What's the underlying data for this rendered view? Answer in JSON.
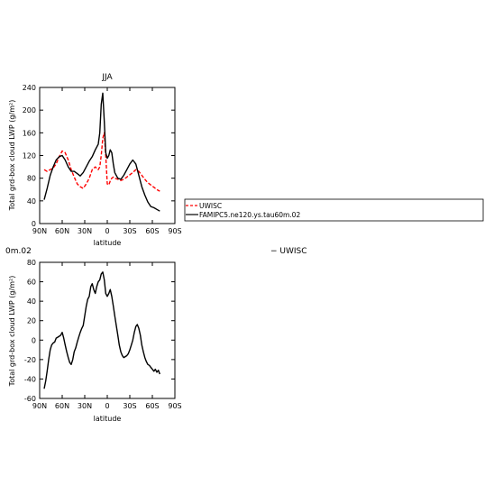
{
  "chart_data": [
    {
      "type": "line",
      "title": "JJA",
      "xlabel": "latitude",
      "ylabel": "Total grd-box cloud LWP (g/m²)",
      "x_ticks": [
        90,
        60,
        30,
        0,
        -30,
        -60,
        -90
      ],
      "x_tick_labels": [
        "90N",
        "60N",
        "30N",
        "0",
        "30S",
        "60S",
        "90S"
      ],
      "xlim": [
        90,
        -90
      ],
      "ylim": [
        0,
        240
      ],
      "y_ticks": [
        0,
        40,
        80,
        120,
        160,
        200,
        240
      ],
      "y_tick_labels": [
        "0",
        "40",
        "80",
        "120",
        "160",
        "200",
        "240"
      ],
      "series": [
        {
          "name": "UWISC",
          "color": "#ff0000",
          "dash": "dashed",
          "x": [
            84,
            80,
            76,
            72,
            68,
            64,
            60,
            56,
            52,
            48,
            44,
            40,
            36,
            32,
            28,
            24,
            20,
            16,
            12,
            10,
            8,
            6,
            4,
            2,
            0,
            -2,
            -4,
            -6,
            -8,
            -10,
            -14,
            -18,
            -22,
            -26,
            -30,
            -34,
            -38,
            -42,
            -46,
            -50,
            -54,
            -58,
            -62,
            -66,
            -70
          ],
          "y": [
            95,
            92,
            95,
            98,
            105,
            118,
            128,
            125,
            112,
            95,
            82,
            70,
            65,
            62,
            70,
            80,
            95,
            100,
            95,
            100,
            120,
            150,
            160,
            120,
            70,
            68,
            75,
            80,
            82,
            80,
            78,
            76,
            78,
            82,
            86,
            90,
            95,
            92,
            85,
            78,
            72,
            68,
            64,
            60,
            57
          ]
        },
        {
          "name": "FAMIPC5.ne120.ys.tau60m.02",
          "color": "#000000",
          "dash": "solid",
          "x": [
            84,
            80,
            76,
            72,
            68,
            64,
            60,
            56,
            52,
            48,
            44,
            40,
            36,
            32,
            28,
            24,
            20,
            16,
            12,
            10,
            8,
            6,
            4,
            2,
            0,
            -2,
            -4,
            -6,
            -8,
            -10,
            -14,
            -18,
            -22,
            -26,
            -30,
            -34,
            -38,
            -42,
            -46,
            -50,
            -54,
            -58,
            -62,
            -66,
            -70
          ],
          "y": [
            42,
            62,
            85,
            100,
            112,
            118,
            120,
            112,
            100,
            92,
            92,
            88,
            84,
            90,
            100,
            110,
            118,
            130,
            140,
            160,
            210,
            230,
            180,
            125,
            115,
            120,
            130,
            125,
            105,
            90,
            80,
            78,
            85,
            95,
            105,
            112,
            105,
            85,
            65,
            50,
            38,
            30,
            28,
            25,
            22
          ]
        }
      ],
      "legend": {
        "placement": "right",
        "entries": [
          "UWISC",
          "FAMIPC5.ne120.ys.tau60m.02"
        ]
      }
    },
    {
      "type": "line",
      "title": "",
      "xlabel": "latitude",
      "ylabel": "Total grd-box cloud LWP (g/m²)",
      "x_ticks": [
        90,
        60,
        30,
        0,
        -30,
        -60,
        -90
      ],
      "x_tick_labels": [
        "90N",
        "60N",
        "30N",
        "0",
        "30S",
        "60S",
        "90S"
      ],
      "xlim": [
        90,
        -90
      ],
      "ylim": [
        -60,
        80
      ],
      "y_ticks": [
        -60,
        -40,
        -20,
        0,
        20,
        40,
        60,
        80
      ],
      "y_tick_labels": [
        "-60",
        "-40",
        "-20",
        "0",
        "20",
        "40",
        "60",
        "80"
      ],
      "series": [
        {
          "color": "#000000",
          "dash": "solid",
          "x": [
            84,
            82,
            80,
            78,
            76,
            74,
            72,
            70,
            68,
            66,
            64,
            62,
            60,
            58,
            56,
            54,
            52,
            50,
            48,
            46,
            44,
            42,
            40,
            38,
            36,
            34,
            32,
            30,
            28,
            26,
            24,
            22,
            20,
            18,
            16,
            14,
            12,
            10,
            8,
            6,
            4,
            2,
            0,
            -2,
            -4,
            -6,
            -8,
            -10,
            -12,
            -14,
            -16,
            -18,
            -20,
            -22,
            -24,
            -26,
            -28,
            -30,
            -32,
            -34,
            -36,
            -38,
            -40,
            -42,
            -44,
            -46,
            -48,
            -50,
            -52,
            -54,
            -56,
            -58,
            -60,
            -62,
            -64,
            -66,
            -68,
            -70
          ],
          "y": [
            -50,
            -42,
            -32,
            -20,
            -10,
            -5,
            -3,
            -2,
            2,
            3,
            4,
            5,
            8,
            2,
            -5,
            -12,
            -18,
            -23,
            -25,
            -20,
            -12,
            -8,
            -2,
            3,
            8,
            12,
            15,
            25,
            35,
            42,
            45,
            55,
            58,
            52,
            48,
            55,
            60,
            62,
            68,
            70,
            62,
            48,
            45,
            48,
            52,
            45,
            35,
            25,
            15,
            5,
            -5,
            -12,
            -16,
            -18,
            -17,
            -16,
            -14,
            -10,
            -5,
            0,
            8,
            14,
            16,
            12,
            5,
            -5,
            -12,
            -18,
            -22,
            -25,
            -26,
            -28,
            -30,
            -32,
            -30,
            -33,
            -31,
            -35
          ]
        }
      ]
    }
  ],
  "fragments": {
    "left_label": "0m.02",
    "right_label": "− UWISC"
  }
}
